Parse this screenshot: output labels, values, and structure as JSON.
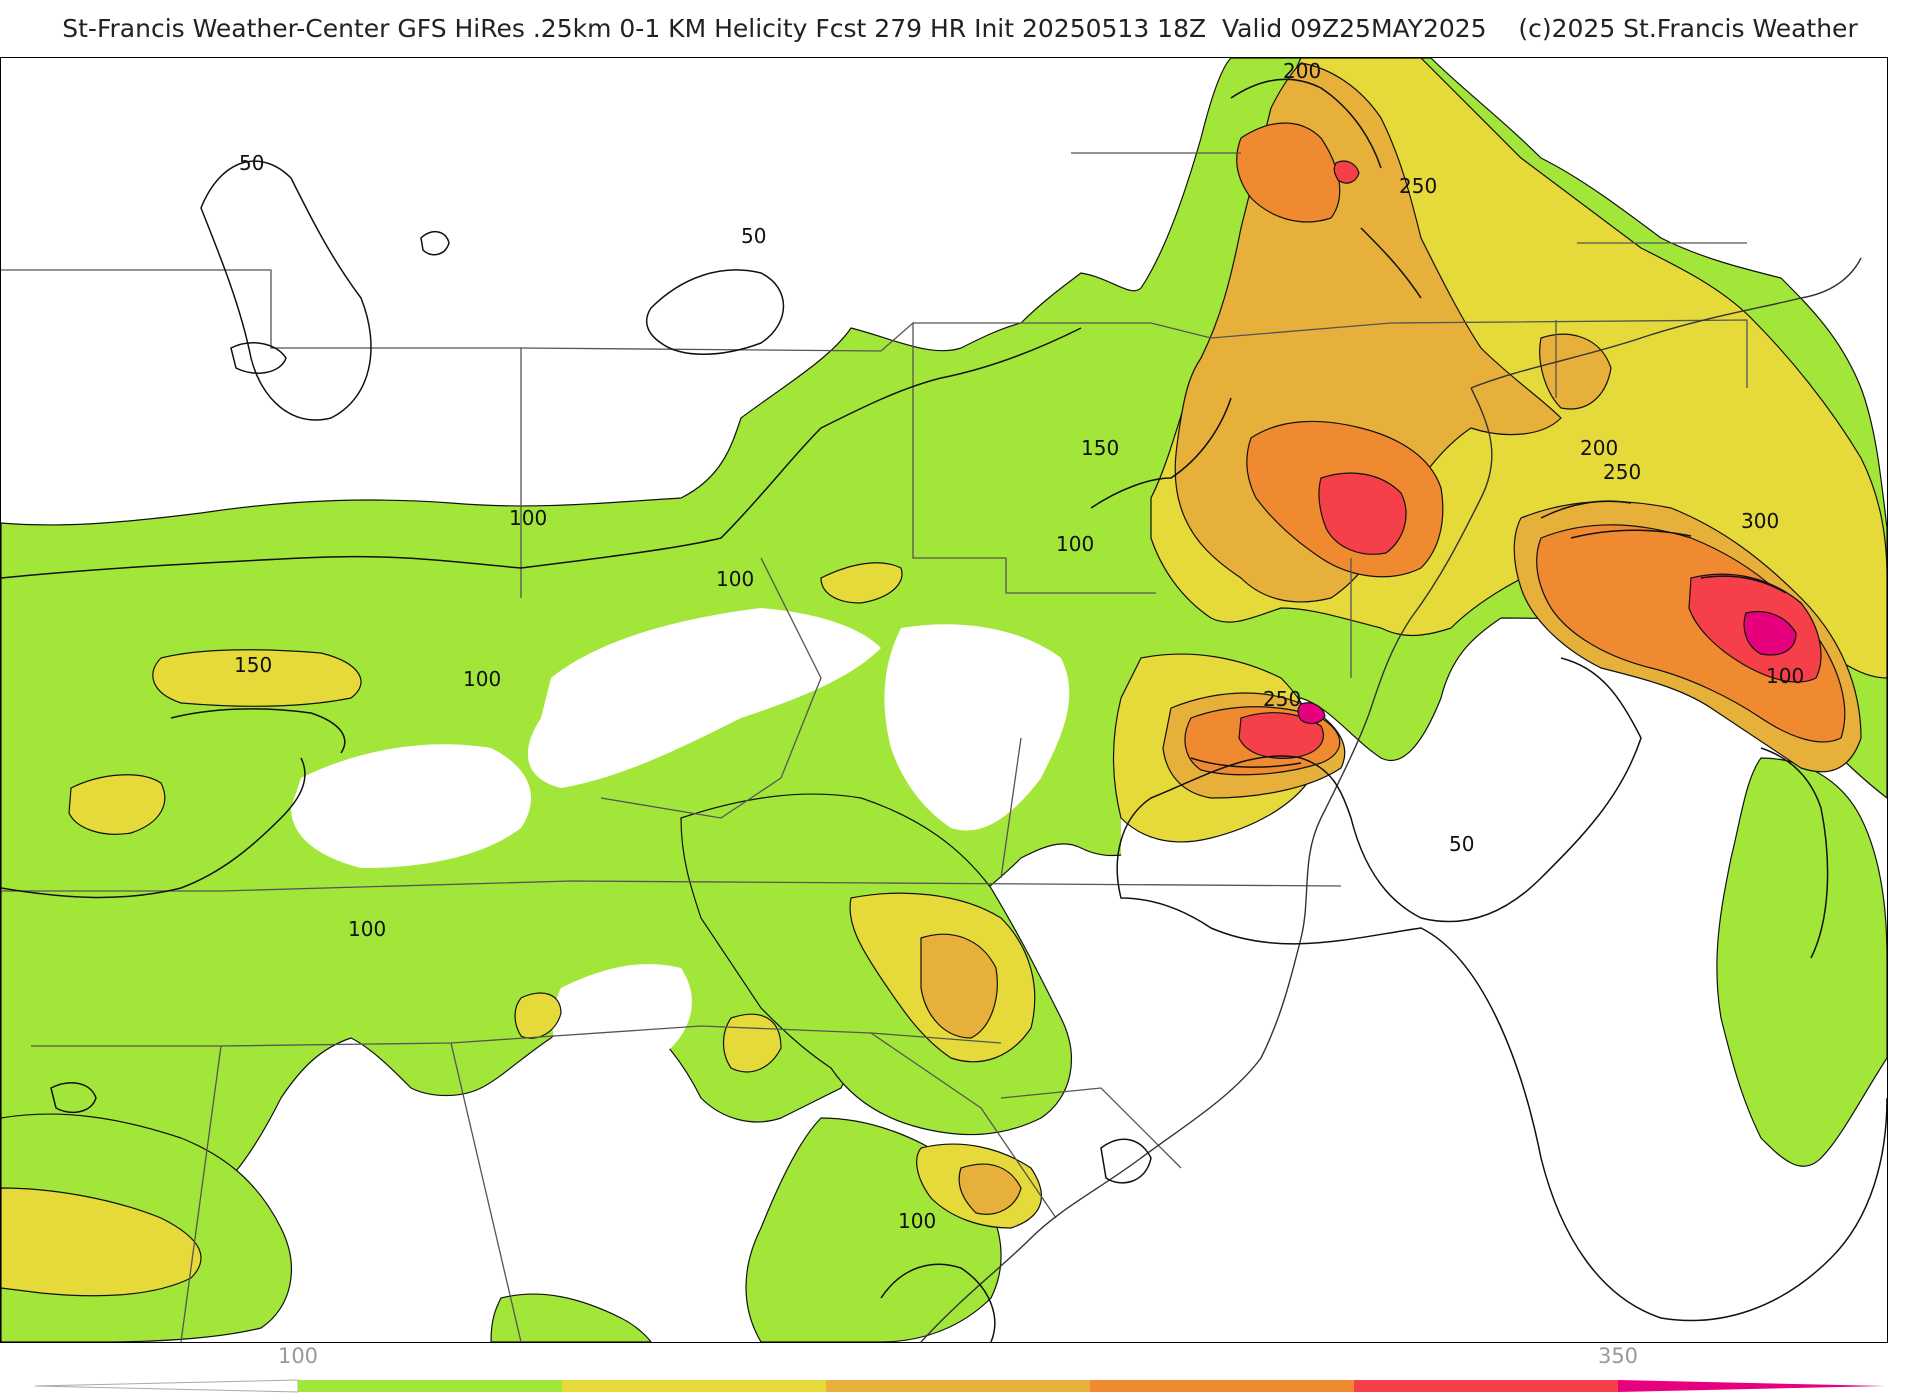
{
  "title": "St-Francis Weather-Center GFS HiRes .25km 0-1 KM Helicity Fcst 279 HR Init 20250513 18Z  Valid 09Z25MAY2025    (c)2025 St.Francis Weather",
  "colors": {
    "fill_100_150": "#a3e63a",
    "fill_150_200": "#e6d93a",
    "fill_200_250": "#e6b03a",
    "fill_250_300": "#f08a30",
    "fill_300_350": "#f5404a",
    "fill_350_plus": "#e6007e",
    "contour": "#111111",
    "boundary": "#555555",
    "county": "#bbbbbb"
  },
  "contour_labels": [
    {
      "text": "50"
    },
    {
      "text": "50"
    },
    {
      "text": "50"
    },
    {
      "text": "100"
    },
    {
      "text": "100"
    },
    {
      "text": "100"
    },
    {
      "text": "100"
    },
    {
      "text": "100"
    },
    {
      "text": "100"
    },
    {
      "text": "100"
    },
    {
      "text": "150"
    },
    {
      "text": "150"
    },
    {
      "text": "200"
    },
    {
      "text": "200"
    },
    {
      "text": "250"
    },
    {
      "text": "250"
    },
    {
      "text": "250"
    },
    {
      "text": "300"
    }
  ],
  "colorbar": {
    "tick_labels": [
      "100",
      "350"
    ],
    "segments": [
      "#a3e63a",
      "#e6d93a",
      "#e6b03a",
      "#f08a30",
      "#f5404a",
      "#e6007e"
    ]
  }
}
